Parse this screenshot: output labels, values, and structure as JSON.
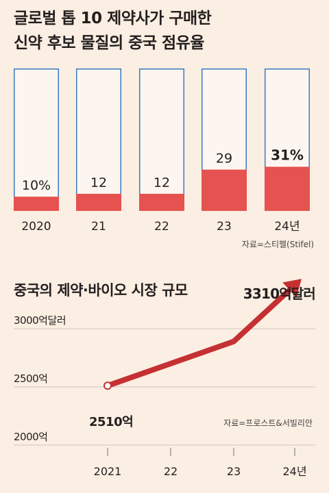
{
  "title_line1": "글로벌 톱 10 제약사가 구매한",
  "title_line2": "신약 후보 물질의 중국 점유율",
  "colors": {
    "bar_fill": "#e5524f",
    "bar_outline": "#3a7bbf",
    "arrow": "#c53032",
    "background": "#fbeee2"
  },
  "chart_data": [
    {
      "type": "bar",
      "title": "글로벌 톱 10 제약사가 구매한 신약 후보 물질의 중국 점유율",
      "categories": [
        "2020",
        "21",
        "22",
        "23",
        "24년"
      ],
      "values": [
        10,
        12,
        12,
        29,
        31
      ],
      "value_labels": [
        "10%",
        "12",
        "12",
        "29",
        "31%"
      ],
      "ylim": [
        0,
        100
      ],
      "source": "자료=스티펠(Stifel)"
    },
    {
      "type": "line",
      "title": "중국의 제약·바이오 시장 규모",
      "x": [
        "2021",
        "22",
        "23",
        "24년"
      ],
      "values": [
        2510,
        2700,
        2890,
        3310
      ],
      "point_labels": {
        "first": "2510억",
        "last": "3310억달러"
      },
      "ytick_labels": [
        "3000억달러",
        "2500억",
        "2000억"
      ],
      "yticks": [
        3000,
        2500,
        2000
      ],
      "ylim": [
        1950,
        3350
      ],
      "source": "자료=프로스트&서빌리안"
    }
  ]
}
